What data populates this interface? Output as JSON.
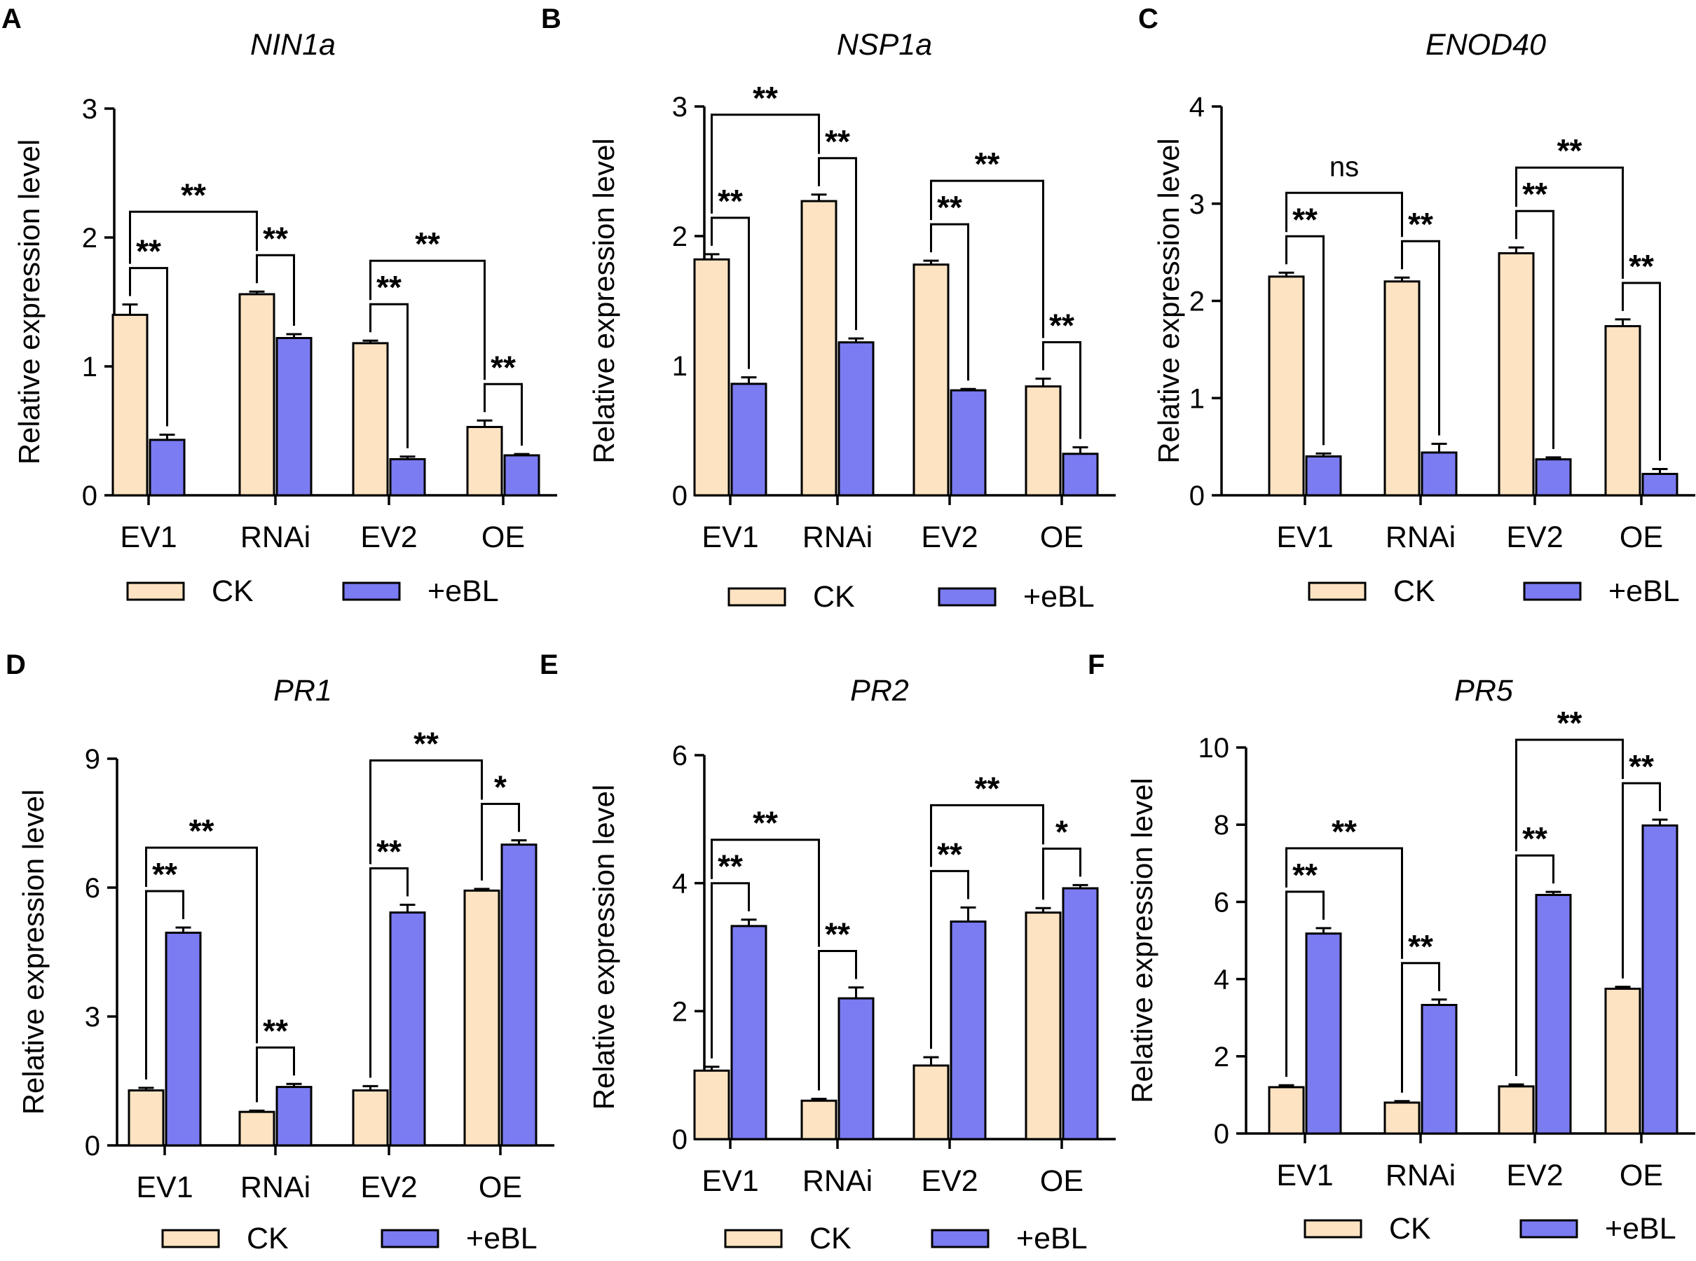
{
  "figure": {
    "legend": {
      "ck_label": "CK",
      "ebl_label": "+eBL"
    },
    "colors": {
      "ck": "#fde3c2",
      "ebl": "#7b7bf2"
    },
    "y_axis_label": "Relative expression level"
  },
  "chart_data": [
    {
      "panel": "A",
      "type": "bar",
      "title": "NIN1a",
      "ylabel": "Relative expression level",
      "categories": [
        "EV1",
        "RNAi",
        "EV2",
        "OE"
      ],
      "ylim": [
        0,
        3
      ],
      "yticks": [
        0,
        1,
        2,
        3
      ],
      "series": [
        {
          "name": "CK",
          "values": [
            1.4,
            1.56,
            1.18,
            0.53
          ],
          "errors": [
            0.08,
            0.02,
            0.02,
            0.05
          ]
        },
        {
          "name": "+eBL",
          "values": [
            0.43,
            1.22,
            0.28,
            0.31
          ],
          "errors": [
            0.04,
            0.03,
            0.02,
            0.01
          ]
        }
      ],
      "annotations": [
        {
          "label": "**",
          "from": "EV1 CK",
          "to": "EV1 +eBL"
        },
        {
          "label": "**",
          "from": "RNAi CK",
          "to": "RNAi +eBL"
        },
        {
          "label": "**",
          "from": "EV2 CK",
          "to": "EV2 +eBL"
        },
        {
          "label": "**",
          "from": "OE CK",
          "to": "OE +eBL"
        },
        {
          "label": "**",
          "from": "EV1",
          "to": "RNAi"
        },
        {
          "label": "**",
          "from": "EV2",
          "to": "OE"
        }
      ]
    },
    {
      "panel": "B",
      "type": "bar",
      "title": "NSP1a",
      "ylabel": "Relative expression level",
      "categories": [
        "EV1",
        "RNAi",
        "EV2",
        "OE"
      ],
      "ylim": [
        0,
        3
      ],
      "yticks": [
        0,
        1,
        2,
        3
      ],
      "series": [
        {
          "name": "CK",
          "values": [
            1.82,
            2.27,
            1.78,
            0.84
          ],
          "errors": [
            0.04,
            0.05,
            0.03,
            0.06
          ]
        },
        {
          "name": "+eBL",
          "values": [
            0.86,
            1.18,
            0.81,
            0.32
          ],
          "errors": [
            0.05,
            0.03,
            0.01,
            0.05
          ]
        }
      ],
      "annotations": [
        {
          "label": "**",
          "from": "EV1 CK",
          "to": "EV1 +eBL"
        },
        {
          "label": "**",
          "from": "RNAi CK",
          "to": "RNAi +eBL"
        },
        {
          "label": "**",
          "from": "EV2 CK",
          "to": "EV2 +eBL"
        },
        {
          "label": "**",
          "from": "OE CK",
          "to": "OE +eBL"
        },
        {
          "label": "**",
          "from": "EV1",
          "to": "RNAi"
        },
        {
          "label": "**",
          "from": "EV2",
          "to": "OE"
        }
      ]
    },
    {
      "panel": "C",
      "type": "bar",
      "title": "ENOD40",
      "ylabel": "Relative expression level",
      "categories": [
        "EV1",
        "RNAi",
        "EV2",
        "OE"
      ],
      "ylim": [
        0,
        4
      ],
      "yticks": [
        0,
        1,
        2,
        3,
        4
      ],
      "series": [
        {
          "name": "CK",
          "values": [
            2.25,
            2.2,
            2.49,
            1.74
          ],
          "errors": [
            0.04,
            0.04,
            0.06,
            0.07
          ]
        },
        {
          "name": "+eBL",
          "values": [
            0.4,
            0.44,
            0.37,
            0.22
          ],
          "errors": [
            0.03,
            0.09,
            0.02,
            0.05
          ]
        }
      ],
      "annotations": [
        {
          "label": "**",
          "from": "EV1 CK",
          "to": "EV1 +eBL"
        },
        {
          "label": "**",
          "from": "RNAi CK",
          "to": "RNAi +eBL"
        },
        {
          "label": "**",
          "from": "EV2 CK",
          "to": "EV2 +eBL"
        },
        {
          "label": "**",
          "from": "OE CK",
          "to": "OE +eBL"
        },
        {
          "label": "ns",
          "from": "EV1",
          "to": "RNAi"
        },
        {
          "label": "**",
          "from": "EV2",
          "to": "OE"
        }
      ]
    },
    {
      "panel": "D",
      "type": "bar",
      "title": "PR1",
      "ylabel": "Relative expression level",
      "categories": [
        "EV1",
        "RNAi",
        "EV2",
        "OE"
      ],
      "ylim": [
        0,
        9
      ],
      "yticks": [
        0,
        3,
        6,
        9
      ],
      "series": [
        {
          "name": "CK",
          "values": [
            1.28,
            0.78,
            1.28,
            5.93
          ],
          "errors": [
            0.06,
            0.03,
            0.1,
            0.04
          ]
        },
        {
          "name": "+eBL",
          "values": [
            4.95,
            1.36,
            5.42,
            7.0
          ],
          "errors": [
            0.12,
            0.07,
            0.18,
            0.1
          ]
        }
      ],
      "annotations": [
        {
          "label": "**",
          "from": "EV1 CK",
          "to": "EV1 +eBL"
        },
        {
          "label": "**",
          "from": "RNAi CK",
          "to": "RNAi +eBL"
        },
        {
          "label": "**",
          "from": "EV2 CK",
          "to": "EV2 +eBL"
        },
        {
          "label": "*",
          "from": "OE CK",
          "to": "OE +eBL"
        },
        {
          "label": "**",
          "from": "EV1",
          "to": "RNAi"
        },
        {
          "label": "**",
          "from": "EV2",
          "to": "OE"
        }
      ]
    },
    {
      "panel": "E",
      "type": "bar",
      "title": "PR2",
      "ylabel": "Relative expression level",
      "categories": [
        "EV1",
        "RNAi",
        "EV2",
        "OE"
      ],
      "ylim": [
        0,
        6
      ],
      "yticks": [
        0,
        2,
        4,
        6
      ],
      "series": [
        {
          "name": "CK",
          "values": [
            1.07,
            0.6,
            1.15,
            3.54
          ],
          "errors": [
            0.06,
            0.03,
            0.13,
            0.07
          ]
        },
        {
          "name": "+eBL",
          "values": [
            3.33,
            2.2,
            3.4,
            3.92
          ],
          "errors": [
            0.1,
            0.17,
            0.22,
            0.05
          ]
        }
      ],
      "annotations": [
        {
          "label": "**",
          "from": "EV1 CK",
          "to": "EV1 +eBL"
        },
        {
          "label": "**",
          "from": "RNAi CK",
          "to": "RNAi +eBL"
        },
        {
          "label": "**",
          "from": "EV2 CK",
          "to": "EV2 +eBL"
        },
        {
          "label": "*",
          "from": "OE CK",
          "to": "OE +eBL"
        },
        {
          "label": "**",
          "from": "EV1",
          "to": "RNAi"
        },
        {
          "label": "**",
          "from": "EV2",
          "to": "OE"
        }
      ]
    },
    {
      "panel": "F",
      "type": "bar",
      "title": "PR5",
      "ylabel": "Relative expression level",
      "categories": [
        "EV1",
        "RNAi",
        "EV2",
        "OE"
      ],
      "ylim": [
        0,
        10
      ],
      "yticks": [
        0,
        2,
        4,
        6,
        8,
        10
      ],
      "series": [
        {
          "name": "CK",
          "values": [
            1.2,
            0.8,
            1.22,
            3.75
          ],
          "errors": [
            0.05,
            0.04,
            0.05,
            0.05
          ]
        },
        {
          "name": "+eBL",
          "values": [
            5.18,
            3.33,
            6.18,
            7.98
          ],
          "errors": [
            0.14,
            0.14,
            0.08,
            0.15
          ]
        }
      ],
      "annotations": [
        {
          "label": "**",
          "from": "EV1 CK",
          "to": "EV1 +eBL"
        },
        {
          "label": "**",
          "from": "RNAi CK",
          "to": "RNAi +eBL"
        },
        {
          "label": "**",
          "from": "EV2 CK",
          "to": "EV2 +eBL"
        },
        {
          "label": "**",
          "from": "OE CK",
          "to": "OE +eBL"
        },
        {
          "label": "**",
          "from": "EV1",
          "to": "RNAi"
        },
        {
          "label": "**",
          "from": "EV2",
          "to": "OE"
        }
      ]
    }
  ]
}
